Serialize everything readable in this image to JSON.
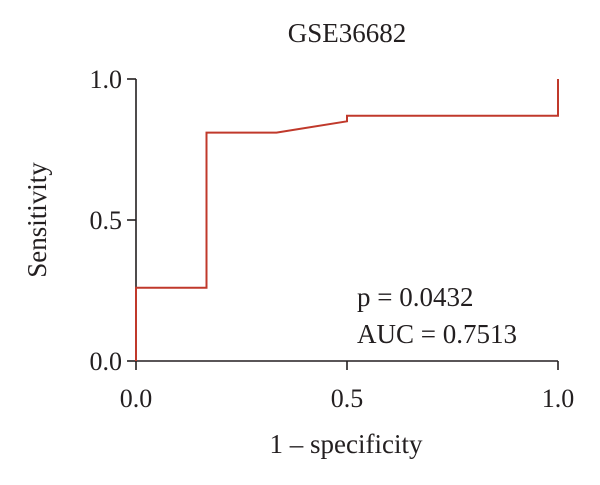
{
  "chart_data": {
    "type": "line",
    "title": "GSE36682",
    "xlabel": "1 – specificity",
    "ylabel": "Sensitivity",
    "xlim": [
      0,
      1
    ],
    "ylim": [
      0,
      1
    ],
    "x_ticks": [
      "0.0",
      "0.5",
      "1.0"
    ],
    "y_ticks": [
      "0.0",
      "0.5",
      "1.0"
    ],
    "grid": false,
    "series": [
      {
        "color": "#c0392b",
        "x": [
          0.0,
          0.0,
          0.167,
          0.167,
          0.333,
          0.5,
          0.5,
          1.0,
          1.0
        ],
        "y": [
          0.0,
          0.26,
          0.26,
          0.81,
          0.81,
          0.85,
          0.87,
          0.87,
          1.0
        ]
      }
    ],
    "annotations": [
      "p = 0.0432",
      "AUC = 0.7513"
    ]
  }
}
